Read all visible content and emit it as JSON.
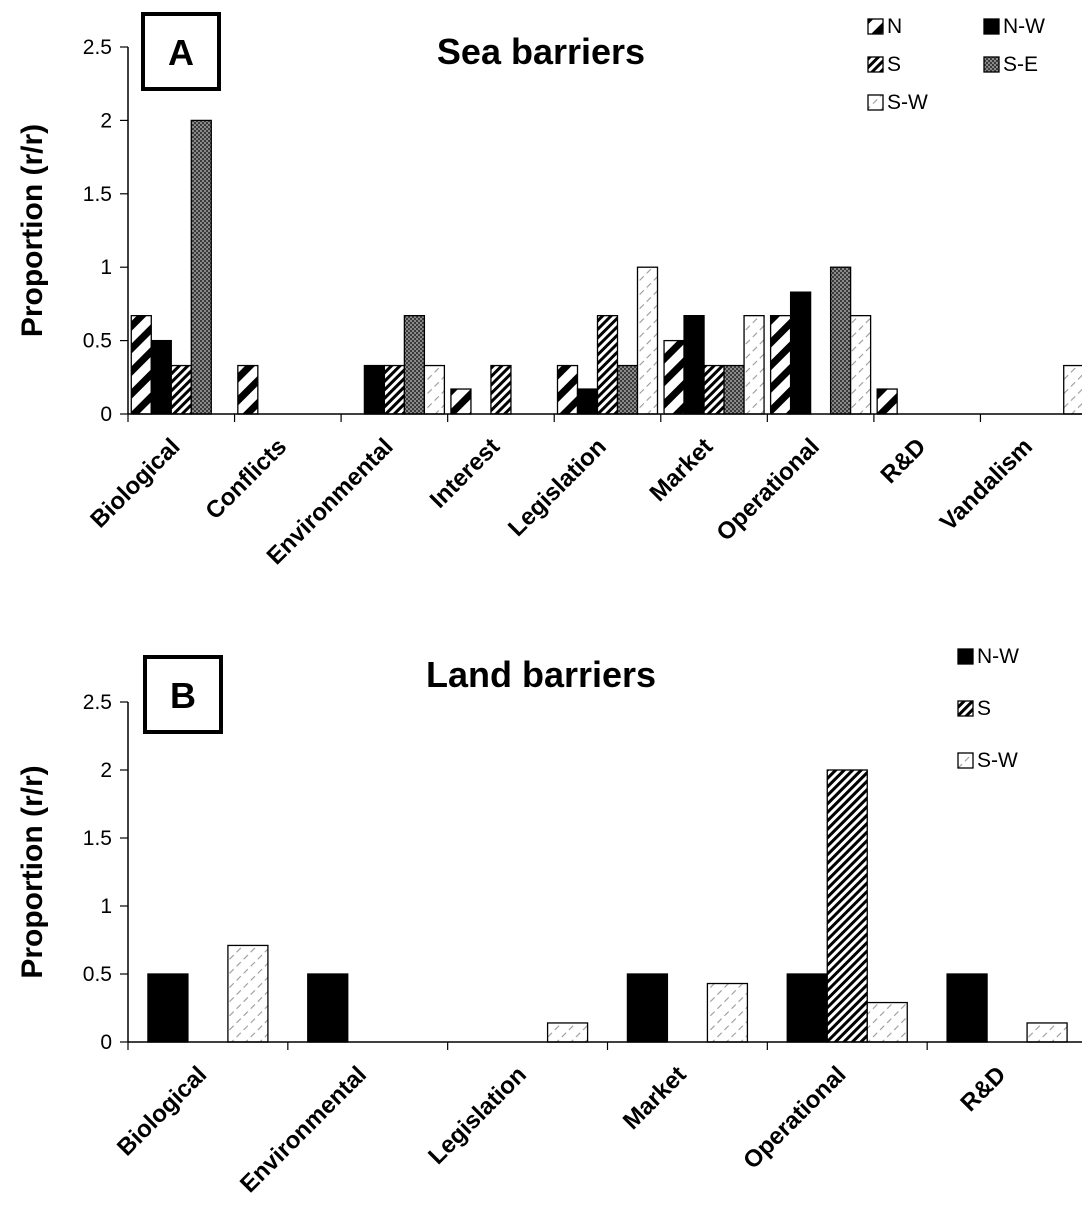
{
  "chart_data": [
    {
      "type": "bar",
      "panel": "A",
      "title": "Sea barriers",
      "ylabel": "Proportion (r/r)",
      "xlabel": "",
      "ylim": [
        0,
        2.5
      ],
      "yticks": [
        "0",
        "0.5",
        "1",
        "1.5",
        "2",
        "2.5"
      ],
      "legend_position": "top-right",
      "categories": [
        "Biological",
        "Conflicts",
        "Environmental",
        "Interest",
        "Legislation",
        "Market",
        "Operational",
        "R&D",
        "Vandalism"
      ],
      "series": [
        {
          "name": "N",
          "pattern": "wide-diagonal",
          "values": [
            0.67,
            0.33,
            0,
            0.17,
            0.33,
            0.5,
            0.67,
            0.17,
            0
          ]
        },
        {
          "name": "N-W",
          "pattern": "solid-black",
          "values": [
            0.5,
            0,
            0.33,
            0,
            0.17,
            0.67,
            0.83,
            0,
            0
          ]
        },
        {
          "name": "S",
          "pattern": "dense-diagonal",
          "values": [
            0.33,
            0,
            0.33,
            0.33,
            0.67,
            0.33,
            0,
            0,
            0
          ]
        },
        {
          "name": "S-E",
          "pattern": "gray-checker",
          "values": [
            2.0,
            0,
            0.67,
            0,
            0.33,
            0.33,
            1.0,
            0,
            0
          ]
        },
        {
          "name": "S-W",
          "pattern": "light-dashed-diagonal",
          "values": [
            0,
            0,
            0.33,
            0,
            1.0,
            0.67,
            0.67,
            0,
            0.33
          ]
        }
      ]
    },
    {
      "type": "bar",
      "panel": "B",
      "title": "Land barriers",
      "ylabel": "Proportion (r/r)",
      "xlabel": "",
      "ylim": [
        0,
        2.5
      ],
      "yticks": [
        "0",
        "0.5",
        "1",
        "1.5",
        "2",
        "2.5"
      ],
      "legend_position": "top-right",
      "categories": [
        "Biological",
        "Environmental",
        "Legislation",
        "Market",
        "Operational",
        "R&D"
      ],
      "series": [
        {
          "name": "N-W",
          "pattern": "solid-black",
          "values": [
            0.5,
            0.5,
            0,
            0.5,
            0.5,
            0.5
          ]
        },
        {
          "name": "S",
          "pattern": "dense-diagonal",
          "values": [
            0,
            0,
            0,
            0,
            2.0,
            0
          ]
        },
        {
          "name": "S-W",
          "pattern": "light-dashed-diagonal",
          "values": [
            0.71,
            0,
            0.14,
            0.43,
            0.29,
            0.14
          ]
        }
      ]
    }
  ]
}
